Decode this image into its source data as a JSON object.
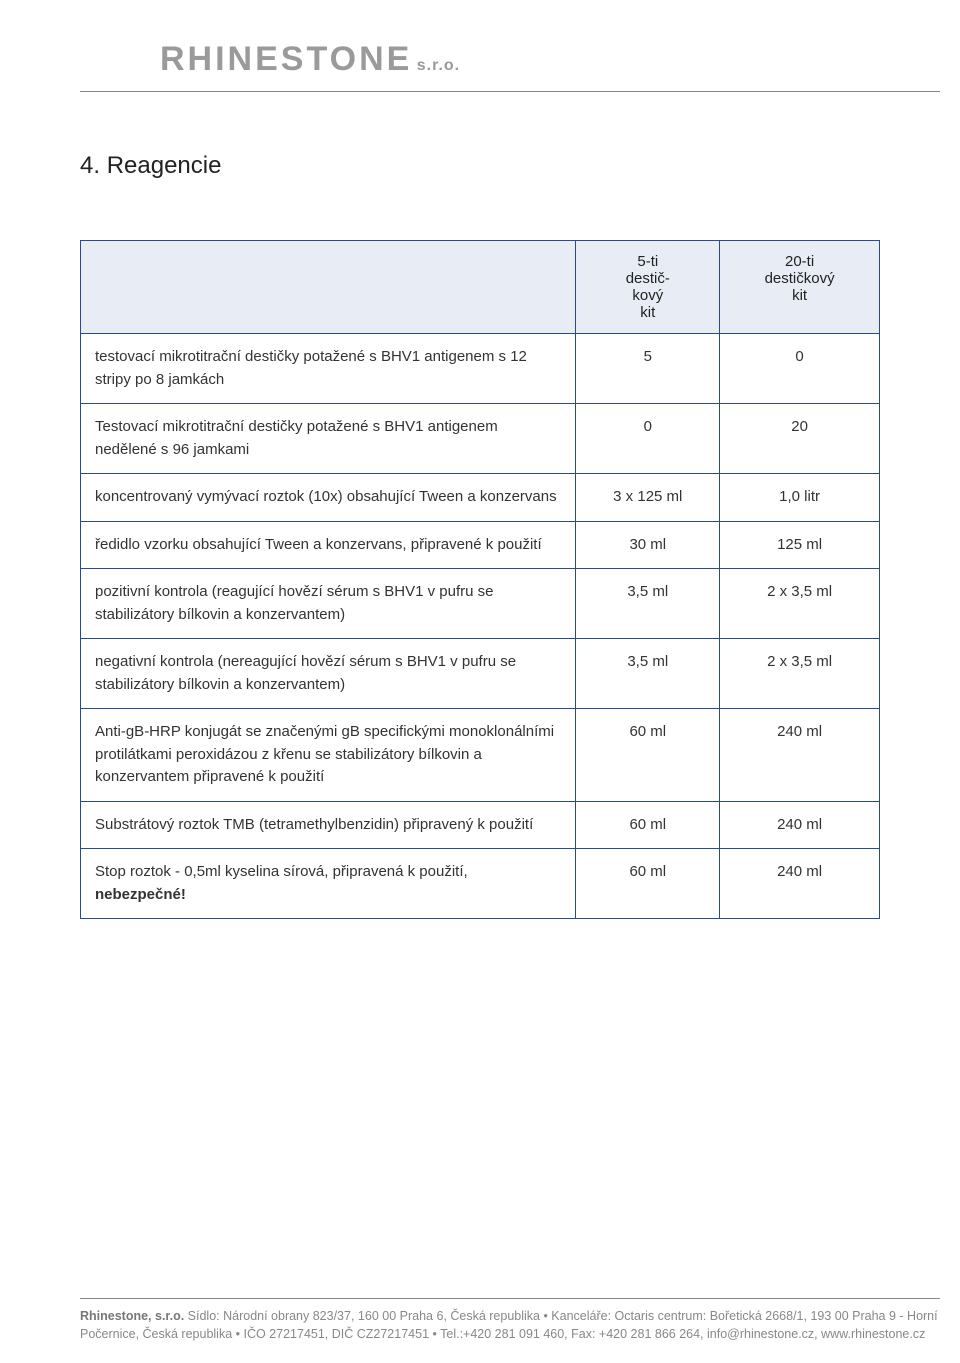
{
  "logo": {
    "main": "RHINESTONE",
    "suffix": "s.r.o."
  },
  "section": {
    "number": "4.",
    "title": "Reagencie"
  },
  "table": {
    "colors": {
      "border": "#2a4a8a",
      "header_bg": "#e8edf5"
    },
    "headers": {
      "col1": "",
      "col2_line1": "5-ti",
      "col2_line2": "destič-",
      "col2_line3": "kový",
      "col2_line4": "kit",
      "col3_line1": "20-ti",
      "col3_line2": "destičkový",
      "col3_line3": "kit"
    },
    "rows": [
      {
        "desc": "testovací mikrotitrační destičky potažené s BHV1 antigenem s 12 stripy po 8 jamkách",
        "v1": "5",
        "v2": "0"
      },
      {
        "desc": "Testovací mikrotitrační destičky potažené s BHV1 antigenem nedělené s 96 jamkami",
        "v1": "0",
        "v2": "20"
      },
      {
        "desc": "koncentrovaný vymývací roztok (10x) obsahující Tween a konzervans",
        "v1": "3 x 125 ml",
        "v2": "1,0 litr"
      },
      {
        "desc": "ředidlo vzorku obsahující Tween a konzervans, připravené k použití",
        "v1": "30 ml",
        "v2": "125 ml"
      },
      {
        "desc": "pozitivní kontrola (reagující hovězí sérum s  BHV1 v pufru se stabilizátory  bílkovin a konzervantem)",
        "v1": "3,5 ml",
        "v2": "2 x 3,5 ml"
      },
      {
        "desc": "negativní kontrola (nereagující hovězí sérum s  BHV1 v pufru se stabilizátory bílkovin a konzervantem)",
        "v1": "3,5 ml",
        "v2": "2 x 3,5 ml"
      },
      {
        "desc": "Anti-gB-HRP konjugát se značenými gB specifickými monoklonálními protilátkami  peroxidázou z křenu se stabilizátory bílkovin a konzervantem připravené k použití",
        "v1": "60 ml",
        "v2": "240 ml"
      },
      {
        "desc": "Substrátový roztok TMB (tetramethylbenzidin) připravený k použití",
        "v1": "60 ml",
        "v2": "240 ml"
      },
      {
        "desc_pre": "Stop roztok - 0,5ml kyselina sírová, připravená k použití, ",
        "desc_bold": "nebezpečné!",
        "v1": "60 ml",
        "v2": "240 ml"
      }
    ]
  },
  "footer": {
    "company": "Rhinestone, s.r.o.",
    "line1": " Sídlo: Národní obrany 823/37, 160 00 Praha 6, Česká republika •  Kanceláře: Octaris centrum: Bořetická 2668/1, 193 00 Praha 9 - Horní Počernice, Česká republika • IČO 27217451, DIČ CZ27217451 • Tel.:+420 281 091 460, Fax: +420 281 866 264, info@rhinestone.cz, www.rhinestone.cz"
  }
}
